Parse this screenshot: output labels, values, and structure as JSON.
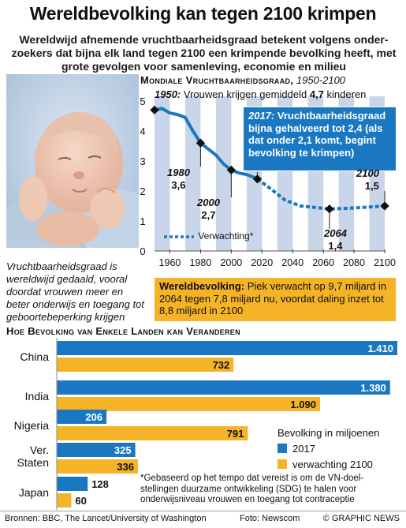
{
  "headline": "Wereldbevolking kan tegen 2100 krimpen",
  "subhead": "Wereldwijd afnemende vruchtbaarheidsgraad betekent volgens onder-zoekers dat bijna elk land tegen 2100 een krimpende bevolking heeft, met grote gevolgen voor samenleving, economie en milieu",
  "fertility": {
    "title_main": "Mondiale Vruchtbaarheidsgraad,",
    "title_range": "1950-2100",
    "note_1950_year": "1950:",
    "note_1950_text": "Vrouwen krijgen gemiddeld",
    "note_1950_value": "4,7",
    "note_1950_unit": "kinderen",
    "callout_year": "2017:",
    "callout_text": "Vruchtbaarheidsgraad bijna gehalveerd tot 2,4 (als dat onder 2,1 komt, begint bevolking te krimpen)",
    "labels": {
      "y1980": "1980",
      "v1980": "3,6",
      "y2000": "2000",
      "v2000": "2,7",
      "y2064": "2064",
      "v2064": "1,4",
      "y2100": "2100",
      "v2100": "1,5"
    },
    "legend_label": "Verwachting*",
    "caption": "Vruchtbaarheidsgraad is wereldwijd gedaald, vooral doordat vrouwen meer en beter onderwijs en toegang tot geboortebeperking krijgen"
  },
  "world_box": {
    "lead": "Wereldbevolking:",
    "text": "Piek verwacht op 9,7 miljard in 2064 tegen 7,8 miljard nu, voordat daling inzet tot 8,8 miljard in 2100"
  },
  "countries_title": "Hoe Bevolking van Enkele Landen kan Veranderen",
  "bar_legend": {
    "title": "Bevolking in miljoenen",
    "s2017": "2017",
    "s2100": "verwachting 2100"
  },
  "footnote": "*Gebaseerd op het tempo dat vereist is om de VN-doel-stellingen duurzame ontwikkeling (SDG) te halen voor onderwijsniveau vrouwen en toegang tot contraceptie",
  "sources": "Bronnen: BBC, The Lancet/University of Washington",
  "photo_credit": "Foto: Newscom",
  "brand": "© GRAPHIC NEWS",
  "colors": {
    "blue": "#1a78c2",
    "orange": "#f5b328",
    "band": "#c9d5e8"
  },
  "chart_data": [
    {
      "type": "line",
      "x": [
        1950,
        1955,
        1960,
        1965,
        1970,
        1975,
        1980,
        1985,
        1990,
        1995,
        2000,
        2005,
        2010,
        2015,
        2017
      ],
      "series": [
        {
          "values": [
            4.7,
            4.75,
            4.6,
            4.55,
            4.45,
            4.0,
            3.6,
            3.4,
            3.2,
            2.9,
            2.7,
            2.6,
            2.55,
            2.45,
            2.4
          ]
        },
        {
          "name": "Verwachting*",
          "x": [
            2017,
            2025,
            2035,
            2045,
            2055,
            2064,
            2075,
            2085,
            2100
          ],
          "values": [
            2.4,
            2.1,
            1.7,
            1.5,
            1.45,
            1.4,
            1.42,
            1.45,
            1.5
          ]
        }
      ],
      "x_ticks": [
        1960,
        1980,
        2000,
        2020,
        2040,
        2060,
        2080,
        2100
      ],
      "y_ticks": [
        0,
        1,
        2,
        3,
        4,
        5
      ],
      "xlim": [
        1950,
        2100
      ],
      "ylim": [
        0,
        5
      ],
      "grid": false
    },
    {
      "type": "bar",
      "orientation": "horizontal",
      "categories": [
        "China",
        "India",
        "Nigeria",
        "Ver. Staten",
        "Japan"
      ],
      "series": [
        {
          "name": "2017",
          "values": [
            1410,
            1380,
            206,
            325,
            128
          ],
          "labels": [
            "1.410",
            "1.380",
            "206",
            "325",
            "128"
          ]
        },
        {
          "name": "verwachting 2100",
          "values": [
            732,
            1090,
            791,
            336,
            60
          ],
          "labels": [
            "732",
            "1.090",
            "791",
            "336",
            "60"
          ]
        }
      ],
      "xlim": [
        0,
        1410
      ]
    }
  ]
}
